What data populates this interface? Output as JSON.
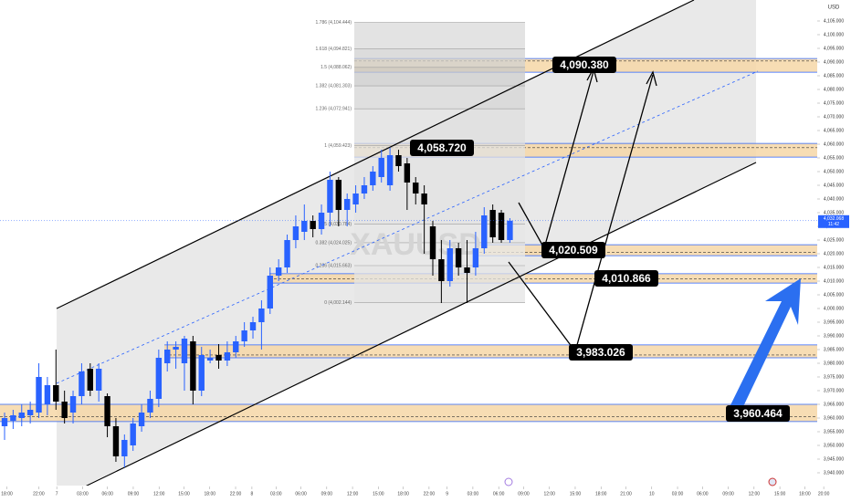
{
  "chart_data": {
    "type": "candlestick",
    "currency": "USD",
    "watermark": "XAUUSD",
    "open": [
      3957,
      3959,
      3960,
      3961,
      3962,
      3965,
      3972,
      3966,
      3962,
      3968,
      3978,
      3970,
      3968,
      3957,
      3946,
      3950,
      3957,
      3962,
      3967,
      3980,
      3985,
      3980,
      3988,
      3970,
      3981,
      3983,
      3981,
      3984,
      3988,
      3992,
      3995,
      4000,
      4012,
      4015,
      4025,
      4028,
      4032,
      4029,
      4035,
      4047,
      4036,
      4038,
      4042,
      4045,
      4048,
      4045,
      4056,
      4053,
      4046,
      4042,
      4030,
      4018,
      4010,
      4022,
      4015,
      4015,
      4022,
      4036,
      4035,
      4025
    ],
    "high": [
      3962,
      3963,
      3965,
      3966,
      3980,
      3975,
      3985,
      3970,
      3970,
      3980,
      3980,
      3980,
      3969,
      3960,
      3954,
      3960,
      3965,
      3970,
      3985,
      3988,
      3988,
      3990,
      3990,
      3986,
      3985,
      3987,
      3988,
      3990,
      3995,
      3997,
      4003,
      4015,
      4018,
      4027,
      4034,
      4038,
      4034,
      4038,
      4050,
      4048,
      4042,
      4045,
      4048,
      4052,
      4058,
      4058.72,
      4058,
      4055,
      4048,
      4045,
      4032,
      4025,
      4025,
      4024,
      4025,
      4028,
      4037,
      4038,
      4036,
      4033
    ],
    "low": [
      3952,
      3956,
      3957,
      3958,
      3960,
      3961,
      3963,
      3958,
      3958,
      3965,
      3968,
      3966,
      3953,
      3944,
      3942,
      3948,
      3955,
      3960,
      3964,
      3977,
      3978,
      3970,
      3965,
      3968,
      3980,
      3978,
      3979,
      3982,
      3986,
      3989,
      3985,
      3998,
      4010,
      4013,
      4022,
      4025,
      4026,
      4027,
      4030,
      4030,
      4030,
      4035,
      4040,
      4043,
      4046,
      4043,
      4050,
      4036,
      4038,
      4020,
      4012,
      4002,
      4008,
      4012,
      4002,
      4012,
      4020,
      4024,
      4024,
      4024
    ],
    "close": [
      3960,
      3961,
      3962,
      3963,
      3975,
      3972,
      3966,
      3960,
      3968,
      3977,
      3970,
      3978,
      3957,
      3946,
      3952,
      3958,
      3962,
      3967,
      3982,
      3985,
      3986,
      3989,
      3970,
      3983,
      3982,
      3981,
      3984,
      3988,
      3992,
      3995,
      4000,
      4012,
      4015,
      4025,
      4030,
      4032,
      4029,
      4035,
      4047,
      4036,
      4040,
      4042,
      4045,
      4050,
      4055,
      4056,
      4052,
      4046,
      4042,
      4038,
      4018,
      4010,
      4022,
      4015,
      4013,
      4022,
      4034,
      4026,
      4025,
      4032.068
    ],
    "up_color": "#2962ff",
    "down_color": "#000000",
    "ylim": [
      3936,
      4112
    ],
    "yticks": [
      {
        "value": 3940,
        "label": "3,940.000"
      },
      {
        "value": 3945,
        "label": "3,945.000"
      },
      {
        "value": 3950,
        "label": "3,950.000"
      },
      {
        "value": 3955,
        "label": "3,955.000"
      },
      {
        "value": 3960,
        "label": "3,960.000"
      },
      {
        "value": 3965,
        "label": "3,965.000"
      },
      {
        "value": 3970,
        "label": "3,970.000"
      },
      {
        "value": 3975,
        "label": "3,975.000"
      },
      {
        "value": 3980,
        "label": "3,980.000"
      },
      {
        "value": 3985,
        "label": "3,985.000"
      },
      {
        "value": 3990,
        "label": "3,990.000"
      },
      {
        "value": 3995,
        "label": "3,995.000"
      },
      {
        "value": 4000,
        "label": "4,000.000"
      },
      {
        "value": 4005,
        "label": "4,005.000"
      },
      {
        "value": 4010,
        "label": "4,010.000"
      },
      {
        "value": 4015,
        "label": "4,015.000"
      },
      {
        "value": 4020,
        "label": "4,020.000"
      },
      {
        "value": 4025,
        "label": "4,025.000"
      },
      {
        "value": 4030,
        "label": "4,030.000"
      },
      {
        "value": 4035,
        "label": "4,035.000"
      },
      {
        "value": 4040,
        "label": "4,040.000"
      },
      {
        "value": 4045,
        "label": "4,045.000"
      },
      {
        "value": 4050,
        "label": "4,050.000"
      },
      {
        "value": 4055,
        "label": "4,055.000"
      },
      {
        "value": 4060,
        "label": "4,060.000"
      },
      {
        "value": 4065,
        "label": "4,065.000"
      },
      {
        "value": 4070,
        "label": "4,070.000"
      },
      {
        "value": 4075,
        "label": "4,075.000"
      },
      {
        "value": 4080,
        "label": "4,080.000"
      },
      {
        "value": 4085,
        "label": "4,085.000"
      },
      {
        "value": 4090,
        "label": "4,090.000"
      },
      {
        "value": 4095,
        "label": "4,095.000"
      },
      {
        "value": 4100,
        "label": "4,100.000"
      },
      {
        "value": 4105,
        "label": "4,105.000"
      }
    ],
    "xlim": [
      0,
      96
    ],
    "xticks": [
      {
        "value": 0.8,
        "label": "18:00"
      },
      {
        "value": 4.5,
        "label": "22:00"
      },
      {
        "value": 6.6,
        "label": "7"
      },
      {
        "value": 9.6,
        "label": "03:00"
      },
      {
        "value": 12.5,
        "label": "06:00"
      },
      {
        "value": 15.5,
        "label": "09:00"
      },
      {
        "value": 18.5,
        "label": "12:00"
      },
      {
        "value": 21.4,
        "label": "15:00"
      },
      {
        "value": 24.4,
        "label": "18:00"
      },
      {
        "value": 27.4,
        "label": "22:00"
      },
      {
        "value": 29.3,
        "label": "8"
      },
      {
        "value": 32.1,
        "label": "03:00"
      },
      {
        "value": 35,
        "label": "06:00"
      },
      {
        "value": 38,
        "label": "09:00"
      },
      {
        "value": 41,
        "label": "12:00"
      },
      {
        "value": 44,
        "label": "15:00"
      },
      {
        "value": 46.9,
        "label": "18:00"
      },
      {
        "value": 49.9,
        "label": "22:00"
      },
      {
        "value": 52,
        "label": "9"
      },
      {
        "value": 55,
        "label": "03:00"
      },
      {
        "value": 58,
        "label": "06:00"
      },
      {
        "value": 60.9,
        "label": "09:00"
      },
      {
        "value": 63.9,
        "label": "12:00"
      },
      {
        "value": 66.9,
        "label": "15:00"
      },
      {
        "value": 69.9,
        "label": "18:00"
      },
      {
        "value": 72.8,
        "label": "21:00"
      },
      {
        "value": 75.8,
        "label": "10"
      },
      {
        "value": 78.8,
        "label": "03:00"
      },
      {
        "value": 81.7,
        "label": "06:00"
      },
      {
        "value": 84.7,
        "label": "09:00"
      },
      {
        "value": 87.7,
        "label": "12:00"
      },
      {
        "value": 90.7,
        "label": "15:00"
      },
      {
        "value": 93.6,
        "label": "18:00"
      },
      {
        "value": 95.8,
        "label": "20:00"
      }
    ],
    "last_price": {
      "value": 4032.068,
      "label": "4,032.068"
    },
    "countdown": "11:42",
    "fib_levels": [
      {
        "label": "1.786 (4,104.444)",
        "price": 4104.444
      },
      {
        "label": "1.618 (4,094.821)",
        "price": 4094.821
      },
      {
        "label": "1.5 (4,088.062)",
        "price": 4088.062
      },
      {
        "label": "1.382 (4,081.303)",
        "price": 4081.303
      },
      {
        "label": "1.236 (4,072.941)",
        "price": 4072.941
      },
      {
        "label": "1 (4,059.423)",
        "price": 4059.423
      },
      {
        "label": "0.5 (4,030.784)",
        "price": 4030.784
      },
      {
        "label": "0.382 (4,024.025)",
        "price": 4024.025
      },
      {
        "label": "0.236 (4,015.663)",
        "price": 4015.663
      },
      {
        "label": "0 (4,002.144)",
        "price": 4002.144
      }
    ],
    "levels": [
      {
        "label": "4,090.380",
        "price": 4090.38,
        "zone": [
          4086.3,
          4091.3
        ]
      },
      {
        "label": "4,058.720",
        "price": 4058.72,
        "zone": [
          4055.3,
          4060.3
        ]
      },
      {
        "label": "4,020.509",
        "price": 4020.509,
        "zone": [
          4019.3,
          4023.3
        ]
      },
      {
        "label": "4,010.866",
        "price": 4010.866,
        "zone": [
          4009.3,
          4012.7
        ]
      },
      {
        "label": "3,983.026",
        "price": 3983.026,
        "zone": [
          3982,
          3986.7
        ]
      },
      {
        "label": "3,960.464",
        "price": 3960.464,
        "zone": [
          3958.7,
          3965
        ]
      }
    ]
  }
}
